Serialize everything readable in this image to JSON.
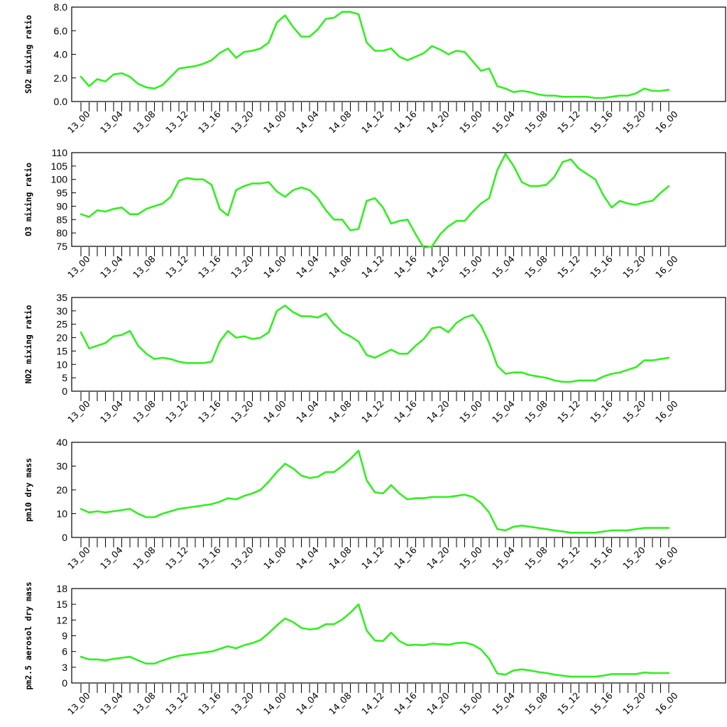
{
  "chart_data": [
    {
      "type": "line",
      "ylabel": "SO2 mixing ratio",
      "ylim": [
        0,
        8
      ],
      "yticks": [
        "0.0",
        "2.0",
        "4.0",
        "6.0",
        "8.0"
      ],
      "ytick_values": [
        0,
        2,
        4,
        6,
        8
      ],
      "x_tick_labels": [
        "13_00",
        "13_04",
        "13_08",
        "13_12",
        "13_16",
        "13_20",
        "14_00",
        "14_04",
        "14_08",
        "14_12",
        "14_16",
        "14_20",
        "15_00",
        "15_04",
        "15_08",
        "15_12",
        "15_16",
        "15_20",
        "16_00"
      ],
      "x_hour_range": [
        0,
        72
      ],
      "series": [
        {
          "color": "#33ee22",
          "values": [
            2.1,
            1.3,
            1.9,
            1.7,
            2.3,
            2.4,
            2.1,
            1.5,
            1.2,
            1.1,
            1.4,
            2.1,
            2.8,
            2.9,
            3.0,
            3.2,
            3.5,
            4.1,
            4.5,
            3.7,
            4.2,
            4.3,
            4.5,
            5.0,
            6.7,
            7.3,
            6.3,
            5.5,
            5.5,
            6.1,
            7.0,
            7.1,
            7.6,
            7.6,
            7.4,
            5.0,
            4.3,
            4.3,
            4.5,
            3.8,
            3.5,
            3.8,
            4.1,
            4.7,
            4.4,
            4.0,
            4.3,
            4.2,
            3.4,
            2.6,
            2.8,
            1.3,
            1.1,
            0.8,
            0.9,
            0.8,
            0.6,
            0.5,
            0.5,
            0.4,
            0.4,
            0.4,
            0.4,
            0.3,
            0.3,
            0.4,
            0.5,
            0.5,
            0.7,
            1.1,
            0.9,
            0.9,
            1.0
          ]
        }
      ]
    },
    {
      "type": "line",
      "ylabel": "O3 mixing ratio",
      "ylim": [
        75,
        110
      ],
      "yticks": [
        "75",
        "80",
        "85",
        "90",
        "95",
        "100",
        "105",
        "110"
      ],
      "ytick_values": [
        75,
        80,
        85,
        90,
        95,
        100,
        105,
        110
      ],
      "x_tick_labels": [
        "13_00",
        "13_04",
        "13_08",
        "13_12",
        "13_16",
        "13_20",
        "14_00",
        "14_04",
        "14_08",
        "14_12",
        "14_16",
        "14_20",
        "15_00",
        "15_04",
        "15_08",
        "15_12",
        "15_16",
        "15_20",
        "16_00"
      ],
      "x_hour_range": [
        0,
        72
      ],
      "series": [
        {
          "color": "#33ee22",
          "values": [
            87,
            86,
            88.5,
            88,
            89,
            89.5,
            87,
            87,
            89,
            90,
            91,
            93.5,
            99.5,
            100.5,
            100,
            100,
            98,
            89,
            86.5,
            96,
            97.5,
            98.5,
            98.5,
            99,
            95.5,
            93.5,
            96,
            97,
            96,
            93,
            88.5,
            85,
            85,
            81,
            81.5,
            92,
            93,
            89.5,
            83.5,
            84.5,
            85,
            79.5,
            74.5,
            75,
            79.5,
            82.5,
            84.5,
            84.5,
            88,
            91,
            93,
            103.5,
            109.5,
            105,
            99,
            97.5,
            97.5,
            98,
            101,
            106.5,
            107.5,
            104,
            102,
            100,
            94,
            89.5,
            92,
            91,
            90.5,
            91.5,
            92,
            95,
            97.5
          ]
        }
      ]
    },
    {
      "type": "line",
      "ylabel": "NO2 mixing ratio",
      "ylim": [
        0,
        35
      ],
      "yticks": [
        "0",
        "5",
        "10",
        "15",
        "20",
        "25",
        "30",
        "35"
      ],
      "ytick_values": [
        0,
        5,
        10,
        15,
        20,
        25,
        30,
        35
      ],
      "x_tick_labels": [
        "13_00",
        "13_04",
        "13_08",
        "13_12",
        "13_16",
        "13_20",
        "14_00",
        "14_04",
        "14_08",
        "14_12",
        "14_16",
        "14_20",
        "15_00",
        "15_04",
        "15_08",
        "15_12",
        "15_16",
        "15_20",
        "16_00"
      ],
      "x_hour_range": [
        0,
        72
      ],
      "series": [
        {
          "color": "#33ee22",
          "values": [
            22,
            16,
            17,
            18,
            20.5,
            21,
            22.5,
            17,
            14,
            12,
            12.5,
            12,
            11,
            10.5,
            10.5,
            10.5,
            11,
            18.5,
            22.5,
            20,
            20.5,
            19.5,
            20,
            22,
            30,
            32,
            29.5,
            28,
            28,
            27.5,
            29,
            25,
            22,
            20.5,
            18.5,
            13.5,
            12.5,
            14,
            15.5,
            14,
            14,
            17,
            19.5,
            23.5,
            24,
            22,
            25.5,
            27.5,
            28.5,
            24.5,
            18,
            9.5,
            6.5,
            7,
            7,
            6,
            5.5,
            5,
            4,
            3.5,
            3.5,
            4,
            4,
            4,
            5.5,
            6.5,
            7,
            8,
            9,
            11.5,
            11.5,
            12,
            12.5
          ]
        }
      ]
    },
    {
      "type": "line",
      "ylabel": "pm10 dry mass",
      "ylim": [
        0,
        40
      ],
      "yticks": [
        "0",
        "10",
        "20",
        "30",
        "40"
      ],
      "ytick_values": [
        0,
        10,
        20,
        30,
        40
      ],
      "x_tick_labels": [
        "13_00",
        "13_04",
        "13_08",
        "13_12",
        "13_16",
        "13_20",
        "14_00",
        "14_04",
        "14_08",
        "14_12",
        "14_16",
        "14_20",
        "15_00",
        "15_04",
        "15_08",
        "15_12",
        "15_16",
        "15_20",
        "16_00"
      ],
      "x_hour_range": [
        0,
        72
      ],
      "series": [
        {
          "color": "#33ee22",
          "values": [
            12,
            10.5,
            11,
            10.5,
            11,
            11.5,
            12,
            10,
            8.5,
            8.5,
            10,
            11,
            12,
            12.5,
            13,
            13.5,
            14,
            15,
            16.5,
            16,
            17.5,
            18.5,
            20,
            23.5,
            27.5,
            31,
            29,
            26,
            25,
            25.5,
            27.5,
            27.5,
            30,
            33,
            36.5,
            24,
            19,
            18.5,
            22,
            18.5,
            16,
            16.5,
            16.5,
            17,
            17,
            17,
            17.5,
            18,
            17,
            14.5,
            10.5,
            3.5,
            3,
            4.5,
            5,
            4.5,
            4,
            3.5,
            3,
            2.5,
            2,
            2,
            2,
            2,
            2.5,
            3,
            3,
            3,
            3.5,
            4,
            4,
            4,
            4
          ]
        }
      ]
    },
    {
      "type": "line",
      "ylabel": "pm2.5 aerosol dry mass",
      "ylim": [
        0,
        18
      ],
      "yticks": [
        "0",
        "3",
        "6",
        "9",
        "12",
        "15",
        "18"
      ],
      "ytick_values": [
        0,
        3,
        6,
        9,
        12,
        15,
        18
      ],
      "x_tick_labels": [
        "13_00",
        "13_04",
        "13_08",
        "13_12",
        "13_16",
        "13_20",
        "14_00",
        "14_04",
        "14_08",
        "14_12",
        "14_16",
        "14_20",
        "15_00",
        "15_04",
        "15_08",
        "15_12",
        "15_16",
        "15_20",
        "16_00"
      ],
      "x_hour_range": [
        0,
        72
      ],
      "series": [
        {
          "color": "#33ee22",
          "values": [
            5,
            4.5,
            4.5,
            4.3,
            4.6,
            4.8,
            5,
            4.3,
            3.7,
            3.7,
            4.3,
            4.8,
            5.2,
            5.4,
            5.6,
            5.8,
            6,
            6.5,
            7,
            6.6,
            7.2,
            7.6,
            8.2,
            9.5,
            11,
            12.3,
            11.6,
            10.5,
            10.2,
            10.4,
            11.2,
            11.2,
            12.1,
            13.4,
            15,
            10,
            8.1,
            8,
            9.6,
            8,
            7.2,
            7.3,
            7.2,
            7.5,
            7.4,
            7.3,
            7.6,
            7.7,
            7.3,
            6.4,
            4.6,
            1.8,
            1.6,
            2.4,
            2.6,
            2.4,
            2.1,
            1.9,
            1.6,
            1.4,
            1.2,
            1.2,
            1.2,
            1.2,
            1.4,
            1.7,
            1.7,
            1.7,
            1.7,
            2,
            1.9,
            1.9,
            1.9
          ]
        }
      ]
    }
  ]
}
